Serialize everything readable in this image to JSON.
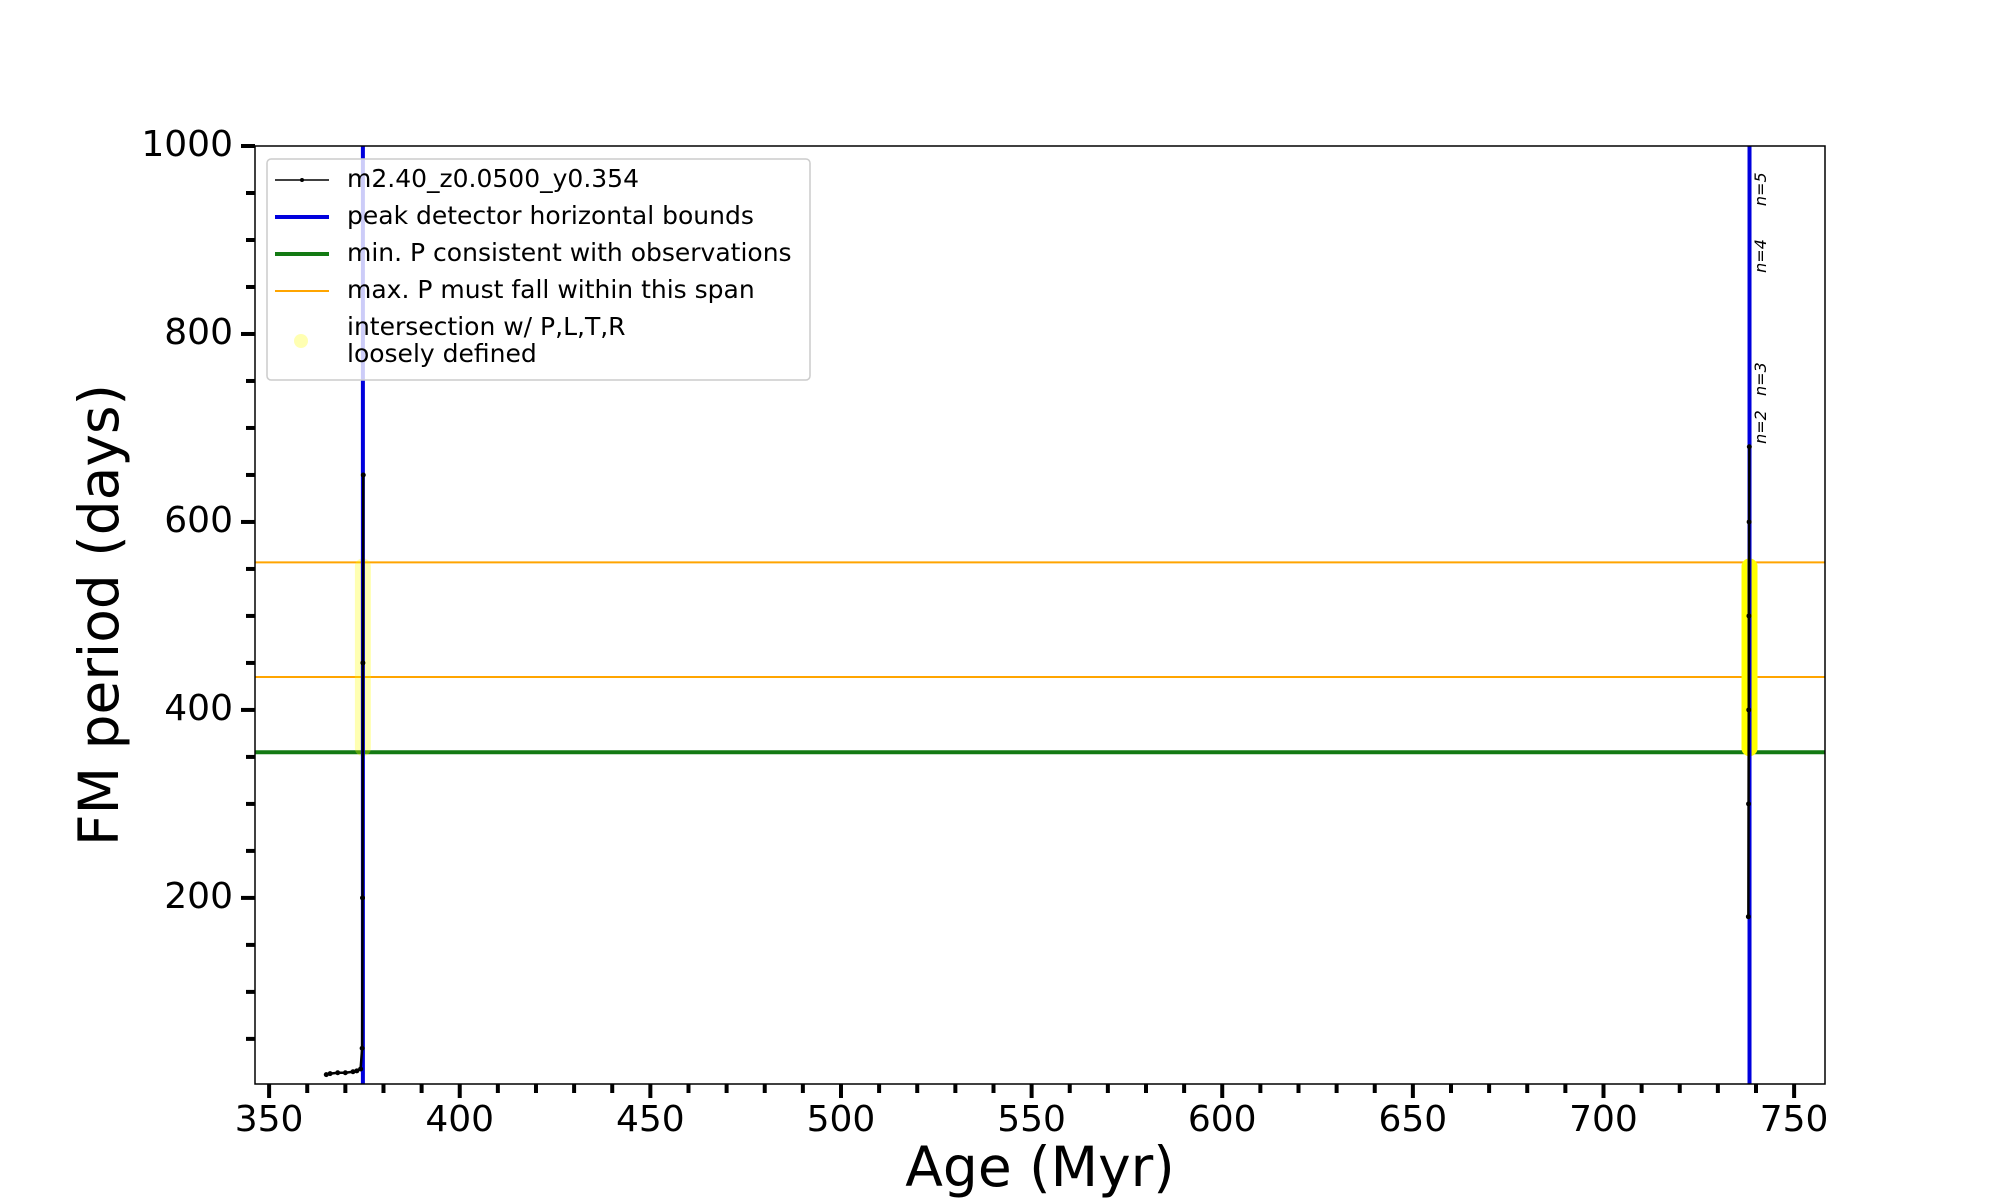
{
  "chart_data": {
    "type": "line",
    "xlabel": "Age (Myr)",
    "ylabel": "FM period (days)",
    "xlim": [
      346.3,
      758.1
    ],
    "ylim": [
      2,
      1000
    ],
    "xticks": [
      350,
      400,
      450,
      500,
      550,
      600,
      650,
      700,
      750
    ],
    "yticks": [
      200,
      400,
      600,
      800,
      1000
    ],
    "xminorticks": [
      360,
      370,
      380,
      390,
      410,
      420,
      430,
      440,
      460,
      470,
      480,
      490,
      510,
      520,
      530,
      540,
      560,
      570,
      580,
      590,
      610,
      620,
      630,
      640,
      660,
      670,
      680,
      690,
      710,
      720,
      730,
      740
    ],
    "yminorticks": [
      50,
      100,
      150,
      250,
      300,
      350,
      450,
      500,
      550,
      650,
      700,
      750,
      850,
      900,
      950
    ],
    "series": [
      {
        "name": "m2.40_z0.0500_y0.354",
        "color": "#000000",
        "x": [
          365,
          366,
          368,
          370,
          372,
          373,
          374,
          374.4,
          374.5,
          374.6,
          374.7,
          null,
          738,
          738.05,
          738.1,
          738.15,
          738.2,
          738.25
        ],
        "values": [
          12,
          13,
          14,
          14,
          15,
          16,
          18,
          40,
          200,
          450,
          650,
          null,
          180,
          300,
          400,
          500,
          600,
          680
        ]
      }
    ],
    "vlines": {
      "name": "peak detector horizontal bounds",
      "color": "#0000dd",
      "x": [
        374.6,
        738.3
      ]
    },
    "hlines": [
      {
        "name": "min. P consistent with observations",
        "color": "#137a13",
        "y": [
          355
        ]
      },
      {
        "name": "max. P must fall within this span",
        "color": "#ffa500",
        "y": [
          435,
          557
        ]
      }
    ],
    "spans": {
      "name": [
        "intersection w/ P,L,T,R",
        "loosely defined"
      ],
      "color": "#ffff00",
      "x": [
        374.6,
        738.3
      ],
      "ymin": [
        355,
        355
      ],
      "ymax": [
        557,
        557
      ],
      "alpha": [
        0.3,
        1
      ]
    },
    "annotations": [
      {
        "text": "n=2",
        "x": 741.5,
        "y": 701
      },
      {
        "text": "n=3",
        "x": 741.5,
        "y": 752
      },
      {
        "text": "n=4",
        "x": 741.5,
        "y": 883
      },
      {
        "text": "n=5",
        "x": 741.5,
        "y": 954
      }
    ],
    "legend": "upper left"
  }
}
